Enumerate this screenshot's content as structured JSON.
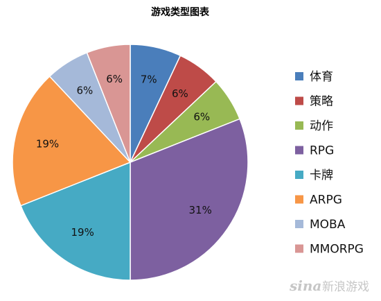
{
  "chart_data": {
    "type": "pie",
    "title": "游戏类型图表",
    "categories": [
      "体育",
      "策略",
      "动作",
      "RPG",
      "卡牌",
      "ARPG",
      "MOBA",
      "MMORPG"
    ],
    "values": [
      7,
      6,
      6,
      31,
      19,
      19,
      6,
      6
    ],
    "labels": [
      "7%",
      "6%",
      "6%",
      "31%",
      "19%",
      "19%",
      "6%",
      "6%"
    ],
    "colors": [
      "#4a7ebb",
      "#be4b48",
      "#98b954",
      "#7d60a0",
      "#46aac4",
      "#f79646",
      "#a5b9d9",
      "#d99694"
    ],
    "legend_position": "right",
    "start": "12 o'clock, clockwise"
  },
  "watermark": {
    "logo": "sina",
    "text": "新浪游戏"
  }
}
